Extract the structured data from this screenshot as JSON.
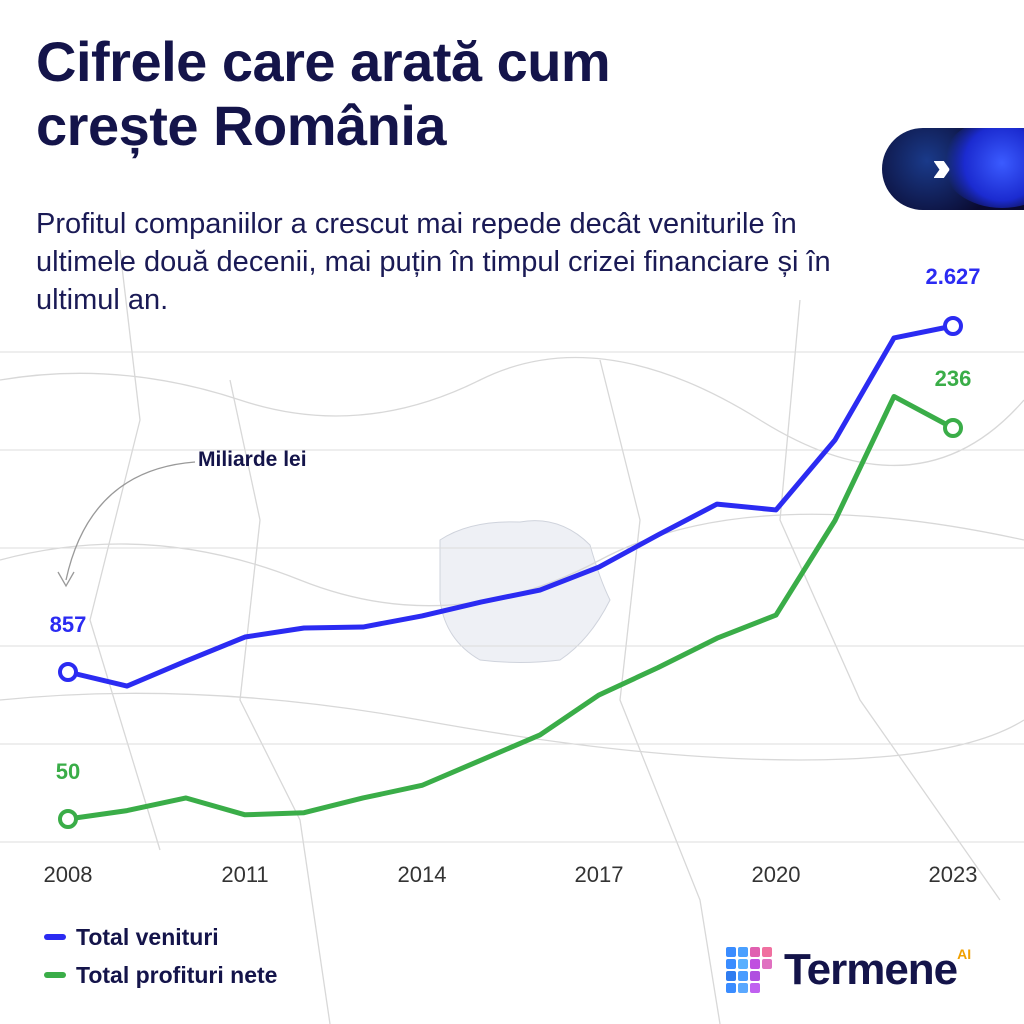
{
  "header": {
    "title_line1": "Cifrele care arată cum",
    "title_line2": "crește România",
    "subtitle": "Profitul companiilor a crescut mai repede decât veniturile în ultimele două decenii, mai puțin în timpul crizei financiare și în ultimul an."
  },
  "badge": {
    "icon": "double-chevron-right-icon"
  },
  "chart_data": {
    "type": "line",
    "x": [
      2008,
      2009,
      2010,
      2011,
      2012,
      2013,
      2014,
      2015,
      2016,
      2017,
      2018,
      2019,
      2020,
      2021,
      2022,
      2023
    ],
    "xticks": [
      "2008",
      "2011",
      "2014",
      "2017",
      "2020",
      "2023"
    ],
    "unit_annotation": "Miliarde lei",
    "grid": true,
    "legend_placement": "bottom-left",
    "series": [
      {
        "name": "Total venituri",
        "color": "#2b2bf2",
        "values": [
          857,
          785,
          913,
          1036,
          1082,
          1087,
          1144,
          1215,
          1276,
          1394,
          1558,
          1716,
          1686,
          2044,
          2566,
          2627
        ],
        "labels": {
          "first": "857",
          "last": "2.627"
        }
      },
      {
        "name": "Total profituri nete",
        "color": "#3aad48",
        "values": [
          50,
          54,
          60,
          52,
          53,
          60,
          66,
          78,
          90,
          109,
          122,
          136,
          147,
          192,
          251,
          236
        ],
        "labels": {
          "first": "50",
          "last": "236"
        }
      }
    ]
  },
  "logo": {
    "text": "Termene",
    "suffix": "AI"
  }
}
